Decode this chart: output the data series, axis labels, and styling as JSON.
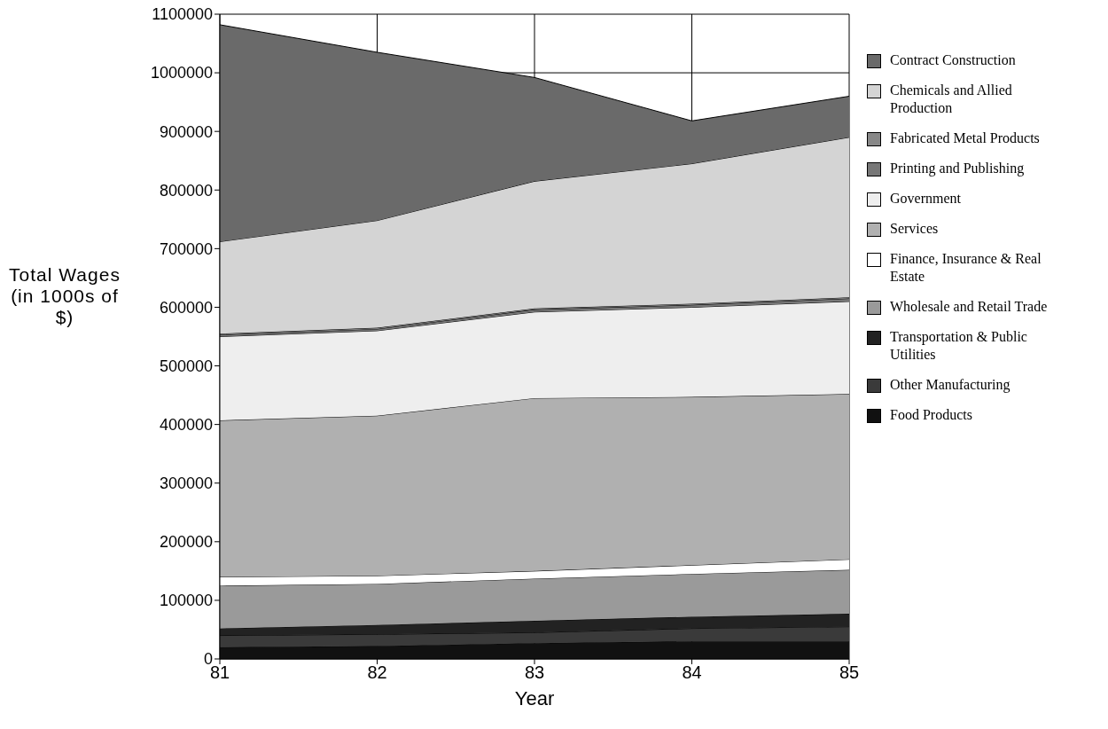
{
  "chart_data": {
    "type": "area",
    "stacked": true,
    "xlabel": "Year",
    "ylabel": "Total Wages (in 1000s of $)",
    "x": [
      81,
      82,
      83,
      84,
      85
    ],
    "xlim": [
      81,
      85
    ],
    "xticks": [
      81,
      82,
      83,
      84,
      85
    ],
    "ylim": [
      0,
      1100000
    ],
    "yticks": [
      0,
      100000,
      200000,
      300000,
      400000,
      500000,
      600000,
      700000,
      800000,
      900000,
      1000000,
      1100000
    ],
    "grid": true,
    "legend": "right",
    "series": [
      {
        "name": "Food Products",
        "color": "#111111",
        "values": [
          20000,
          22000,
          27000,
          30000,
          30000
        ]
      },
      {
        "name": "Other Manufacturing",
        "color": "#3a3a3a",
        "values": [
          20000,
          20000,
          18000,
          22000,
          25000
        ]
      },
      {
        "name": "Transportation & Public Utilities",
        "color": "#222222",
        "values": [
          12000,
          16000,
          20000,
          20000,
          22000
        ]
      },
      {
        "name": "Wholesale and Retail Trade",
        "color": "#9a9a9a",
        "values": [
          73000,
          70000,
          72000,
          73000,
          75000
        ]
      },
      {
        "name": "Finance, Insurance & Real Estate",
        "color": "#ffffff",
        "values": [
          15000,
          14000,
          13000,
          15000,
          18000
        ]
      },
      {
        "name": "Services",
        "color": "#b0b0b0",
        "values": [
          267000,
          273000,
          295000,
          287000,
          282000
        ]
      },
      {
        "name": "Government",
        "color": "#eeeeee",
        "values": [
          143000,
          145000,
          147000,
          153000,
          158000
        ]
      },
      {
        "name": "Printing and Publishing",
        "color": "#777777",
        "values": [
          3000,
          3000,
          4000,
          4000,
          5000
        ]
      },
      {
        "name": "Fabricated Metal Products",
        "color": "#888888",
        "values": [
          2000,
          2000,
          2000,
          2000,
          2000
        ]
      },
      {
        "name": "Chemicals and Allied Production",
        "color": "#d4d4d4",
        "values": [
          157000,
          183000,
          217000,
          239000,
          273000
        ]
      },
      {
        "name": "Contract Construction",
        "color": "#6a6a6a",
        "values": [
          370000,
          287000,
          177000,
          73000,
          70000
        ]
      }
    ]
  }
}
